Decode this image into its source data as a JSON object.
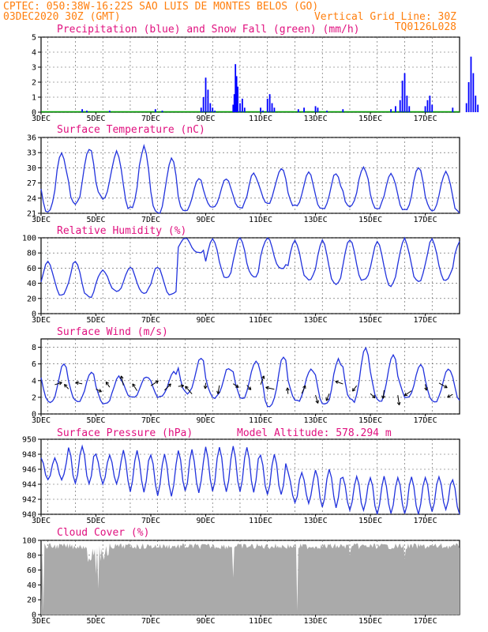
{
  "header": {
    "left_line1": "CPTEC:  050:38W-16:22S  SAO LUIS DE MONTES BELOS (GO)",
    "left_line2": "03DEC2020 30Z (GMT)",
    "right_line2": "Vertical Grid Line: 30Z",
    "right_line3": "TQ0126L028"
  },
  "x_axis": {
    "labels": [
      "3DEC",
      "5DEC",
      "7DEC",
      "9DEC",
      "11DEC",
      "13DEC",
      "15DEC",
      "17DEC"
    ],
    "start_hour": 0,
    "end_hour": 366
  },
  "colors": {
    "header": "#ff7f0e",
    "panel_title": "#e0117f",
    "precip": "#0000ff",
    "snow": "#00a000",
    "line": "#2233dd",
    "cloud": "#aaaaaa",
    "wind_arrow": "#000000"
  },
  "chart_data": [
    {
      "type": "bar",
      "title": "Precipitation (blue) and Snow Fall (green) (mm/h)",
      "ylim": [
        0,
        5
      ],
      "yticks": [
        0,
        1,
        2,
        3,
        4,
        5
      ],
      "grid": true,
      "series": [
        {
          "name": "Precipitation",
          "values_hourly_peaks": [
            [
              36,
              0.2
            ],
            [
              40,
              0.1
            ],
            [
              60,
              0.1
            ],
            [
              100,
              0.2
            ],
            [
              106,
              0.1
            ],
            [
              140,
              0.3
            ],
            [
              142,
              1.0
            ],
            [
              144,
              2.3
            ],
            [
              146,
              1.5
            ],
            [
              148,
              0.6
            ],
            [
              150,
              0.3
            ],
            [
              152,
              0.1
            ],
            [
              168,
              0.5
            ],
            [
              169,
              1.2
            ],
            [
              170,
              3.2
            ],
            [
              171,
              2.4
            ],
            [
              172,
              1.7
            ],
            [
              174,
              0.6
            ],
            [
              176,
              0.9
            ],
            [
              178,
              0.3
            ],
            [
              192,
              0.3
            ],
            [
              194,
              0.1
            ],
            [
              198,
              0.9
            ],
            [
              200,
              1.2
            ],
            [
              202,
              0.6
            ],
            [
              204,
              0.3
            ],
            [
              225,
              0.2
            ],
            [
              230,
              0.3
            ],
            [
              240,
              0.4
            ],
            [
              242,
              0.3
            ],
            [
              250,
              0.1
            ],
            [
              264,
              0.2
            ],
            [
              306,
              0.2
            ],
            [
              310,
              0.4
            ],
            [
              314,
              0.8
            ],
            [
              316,
              2.1
            ],
            [
              318,
              2.6
            ],
            [
              320,
              1.1
            ],
            [
              322,
              0.4
            ],
            [
              336,
              0.4
            ],
            [
              338,
              0.8
            ],
            [
              340,
              1.1
            ],
            [
              342,
              0.5
            ],
            [
              360,
              0.3
            ],
            [
              372,
              0.6
            ],
            [
              374,
              2.0
            ],
            [
              376,
              3.7
            ],
            [
              378,
              2.6
            ],
            [
              380,
              1.1
            ],
            [
              382,
              0.5
            ],
            [
              396,
              0.7
            ],
            [
              398,
              0.3
            ],
            [
              420,
              0.1
            ],
            [
              448,
              0.1
            ],
            [
              454,
              0.2
            ],
            [
              456,
              0.1
            ]
          ]
        },
        {
          "name": "Snow Fall",
          "values": "0"
        }
      ]
    },
    {
      "type": "line",
      "title": "Surface Temperature (nC)",
      "ylim": [
        21,
        36
      ],
      "yticks": [
        21,
        24,
        27,
        30,
        33,
        36
      ],
      "grid": true,
      "series": [
        {
          "name": "Temperature",
          "daily_min": [
            21.5,
            23,
            24,
            22,
            21,
            21.5,
            22,
            22,
            23,
            22.5,
            22,
            22.5,
            22,
            21.5,
            21.5,
            21,
            21.5,
            21.5,
            22
          ],
          "daily_max": [
            33,
            34,
            33,
            34,
            32,
            28,
            28,
            29,
            30,
            29,
            29,
            30,
            29,
            30,
            29,
            30,
            28,
            29,
            31
          ]
        }
      ]
    },
    {
      "type": "line",
      "title": "Relative Humidity (%)",
      "ylim": [
        0,
        100
      ],
      "yticks": [
        0,
        20,
        40,
        60,
        80,
        100
      ],
      "grid": true,
      "series": [
        {
          "name": "Relative Humidity",
          "daily_max": [
            68,
            70,
            57,
            62,
            62,
            100,
            100,
            100,
            100,
            95,
            95,
            98,
            96,
            98,
            98,
            96,
            98,
            95,
            100
          ],
          "daily_min": [
            25,
            22,
            30,
            28,
            25,
            80,
            48,
            48,
            60,
            45,
            40,
            45,
            38,
            43,
            45,
            38,
            45,
            40,
            38
          ]
        }
      ]
    },
    {
      "type": "line",
      "title": "Surface Wind (m/s)",
      "ylim": [
        0,
        9
      ],
      "yticks": [
        0,
        2,
        4,
        6,
        8
      ],
      "grid": true,
      "series": [
        {
          "name": "Wind speed",
          "daily_max": [
            6,
            5,
            4.5,
            4.5,
            5,
            6.8,
            5.5,
            6.5,
            7,
            5.5,
            6.5,
            7.8,
            7,
            6,
            5.5,
            6,
            5,
            5.5,
            5
          ],
          "daily_min": [
            1.5,
            1.5,
            1.2,
            2,
            2,
            2.5,
            2,
            2,
            1,
            1.5,
            1,
            1.5,
            1.5,
            2,
            1.5,
            1.5,
            1.5,
            1.5,
            1
          ]
        }
      ]
    },
    {
      "type": "line",
      "title": "Surface Pressure (hPa)",
      "annotation": "Model Altitude: 578.294 m",
      "ylim": [
        940,
        950
      ],
      "yticks": [
        940,
        942,
        944,
        946,
        948,
        950
      ],
      "grid": true,
      "series": [
        {
          "name": "Pressure",
          "daily_max": [
            947.5,
            949,
            948,
            948.5,
            948,
            948.5,
            949,
            949,
            948,
            945.5,
            946,
            945,
            945,
            945,
            945,
            944.5,
            944,
            944,
            942
          ],
          "daily_min": [
            944.5,
            944,
            944,
            943,
            942.5,
            943,
            943,
            943,
            942.5,
            941.5,
            941,
            940.5,
            940,
            940,
            940.5,
            940,
            940,
            940,
            940
          ]
        }
      ]
    },
    {
      "type": "area",
      "title": "Cloud Cover (%)",
      "ylim": [
        0,
        100
      ],
      "yticks": [
        0,
        20,
        40,
        60,
        80,
        100
      ],
      "grid": true,
      "series": [
        {
          "name": "Cloud Cover",
          "typical": 96,
          "dips": [
            [
              0,
              10
            ],
            [
              2,
              5
            ],
            [
              48,
              55
            ],
            [
              50,
              35
            ],
            [
              54,
              80
            ],
            [
              168,
              50
            ],
            [
              224,
              5
            ],
            [
              270,
              80
            ],
            [
              318,
              75
            ]
          ]
        }
      ]
    }
  ]
}
